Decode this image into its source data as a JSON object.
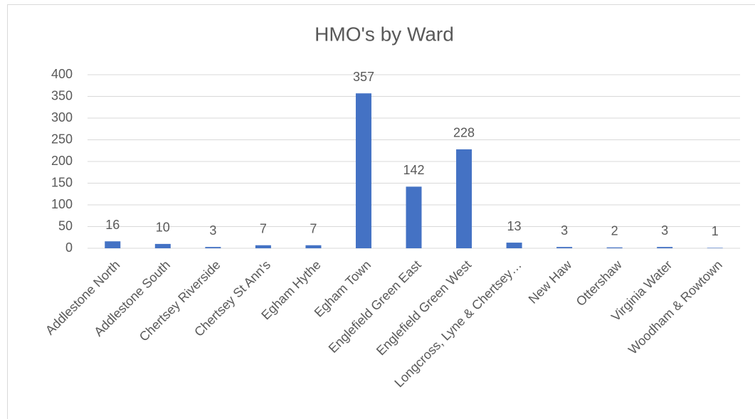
{
  "chart_data": {
    "type": "bar",
    "title": "HMO's by Ward",
    "categories": [
      "Addlestone North",
      "Addlestone South",
      "Chertsey Riverside",
      "Chertsey St Ann's",
      "Egham Hythe",
      "Egham Town",
      "Englefield Green East",
      "Englefield Green West",
      "Longcross, Lyne & Chertsey…",
      "New Haw",
      "Ottershaw",
      "Virginia Water",
      "Woodham & Rowtown"
    ],
    "values": [
      16,
      10,
      3,
      7,
      7,
      357,
      142,
      228,
      13,
      3,
      2,
      3,
      1
    ],
    "color": "#4472c4",
    "ylim": [
      0,
      400
    ],
    "yticks": [
      0,
      50,
      100,
      150,
      200,
      250,
      300,
      350,
      400
    ],
    "grid": true
  }
}
